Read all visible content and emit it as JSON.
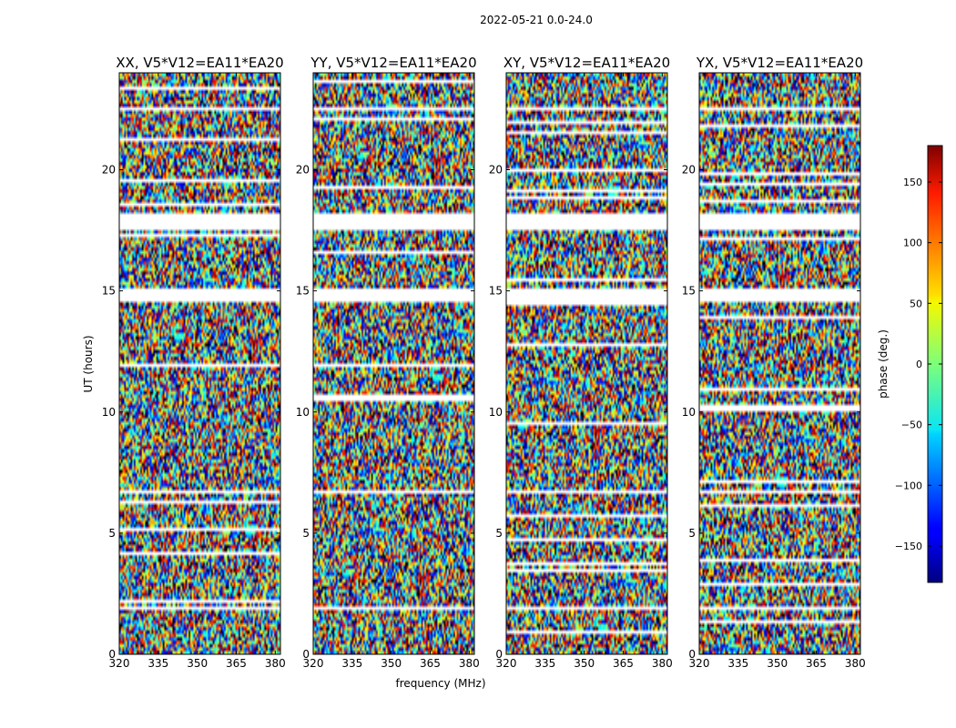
{
  "figure": {
    "suptitle": "2022-05-21 0.0-24.0",
    "xlabel": "frequency (MHz)",
    "ylabel": "UT (hours)"
  },
  "chart_data": {
    "type": "heatmap",
    "title": "2022-05-21 0.0-24.0",
    "xlabel": "frequency (MHz)",
    "ylabel": "UT (hours)",
    "xlim": [
      320,
      382
    ],
    "ylim": [
      0,
      24
    ],
    "x_ticks": [
      320,
      335,
      350,
      365,
      380
    ],
    "y_ticks": [
      0,
      5,
      10,
      15,
      20
    ],
    "panels": [
      {
        "title": "XX, V5*V12=EA11*EA20",
        "polarization": "XX"
      },
      {
        "title": "YY, V5*V12=EA11*EA20",
        "polarization": "YY"
      },
      {
        "title": "XY, V5*V12=EA11*EA20",
        "polarization": "XY"
      },
      {
        "title": "YX, V5*V12=EA11*EA20",
        "polarization": "YX"
      }
    ],
    "colorbar": {
      "label": "phase (deg.)",
      "range": [
        -180,
        180
      ],
      "ticks": [
        150,
        100,
        50,
        0,
        -50,
        -100,
        -150
      ],
      "colormap": "jet"
    },
    "flagged_gaps_hours": [
      [
        17.5,
        18.2
      ],
      [
        14.6,
        15.1
      ],
      [
        6.6,
        6.8
      ],
      [
        1.8,
        2.0
      ],
      [
        22.4,
        22.6
      ],
      [
        19.3,
        19.4
      ]
    ],
    "colors": {
      "axes": "#000000",
      "flagged": "#ffffff"
    }
  }
}
